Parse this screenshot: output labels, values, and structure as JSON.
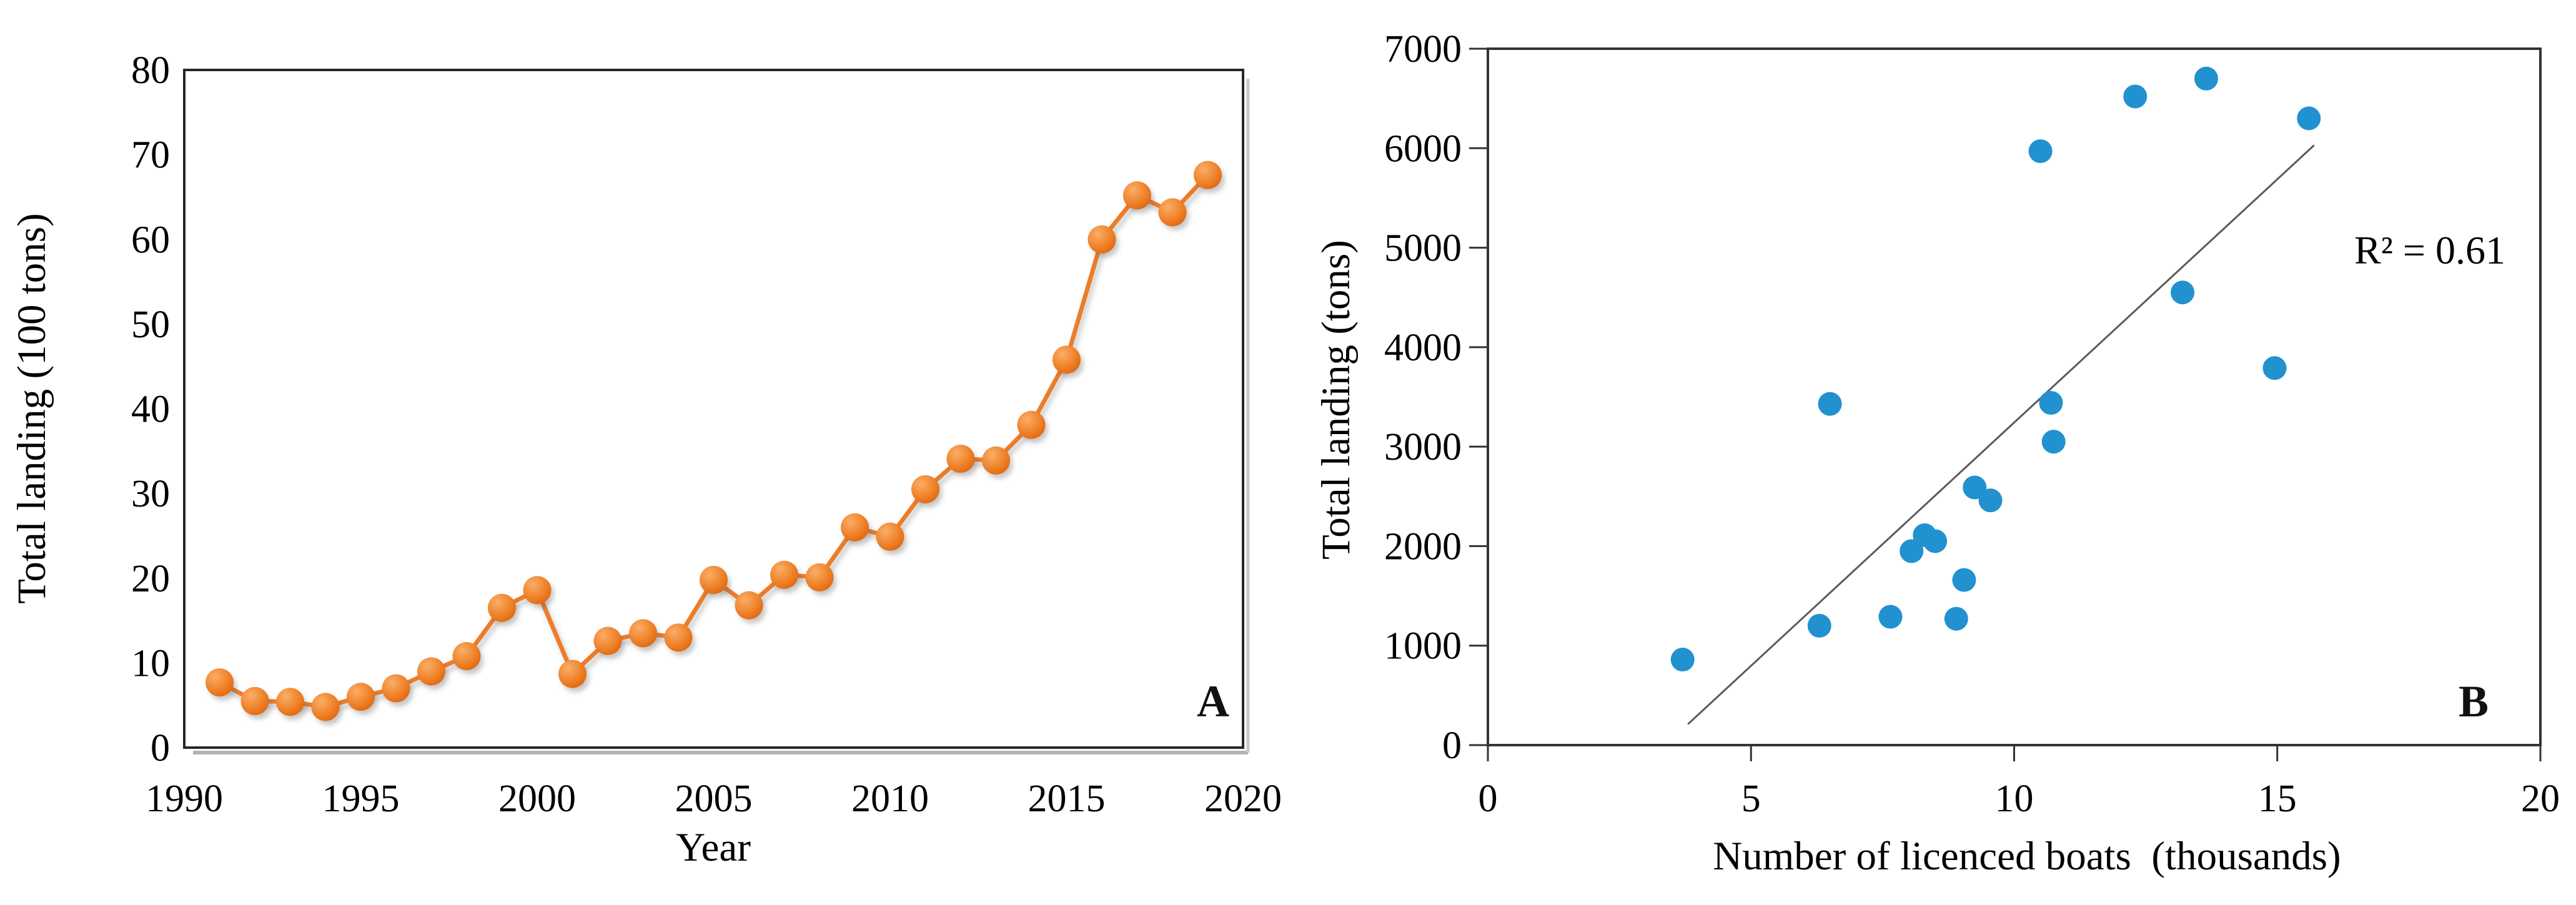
{
  "panels": {
    "a": {
      "letter": "A",
      "xlabel": "Year",
      "ylabel": "Total landing (100 tons)"
    },
    "b": {
      "letter": "B",
      "xlabel": "Number of licenced boats  (thousands)",
      "ylabel": "Total landing (tons)",
      "annotation": "R² = 0.61"
    }
  },
  "chart_data": [
    {
      "id": "A",
      "type": "line",
      "title": "",
      "xlabel": "Year",
      "ylabel": "Total landing (100 tons)",
      "x": [
        1991,
        1992,
        1993,
        1994,
        1995,
        1996,
        1997,
        1998,
        1999,
        2000,
        2001,
        2002,
        2003,
        2004,
        2005,
        2006,
        2007,
        2008,
        2009,
        2010,
        2011,
        2012,
        2013,
        2014,
        2015,
        2016,
        2017,
        2018,
        2019
      ],
      "values": [
        7.7,
        5.5,
        5.4,
        4.8,
        6.0,
        7.0,
        9.0,
        10.8,
        16.5,
        18.6,
        8.7,
        12.6,
        13.5,
        13.0,
        19.8,
        16.8,
        20.4,
        20.1,
        26.0,
        24.9,
        30.5,
        34.1,
        33.9,
        38.1,
        45.8,
        60.0,
        65.2,
        63.2,
        67.6
      ],
      "xlim": [
        1990,
        2020
      ],
      "ylim": [
        0,
        80
      ],
      "xticks": [
        1990,
        1995,
        2000,
        2005,
        2010,
        2015,
        2020
      ],
      "yticks": [
        0,
        10,
        20,
        30,
        40,
        50,
        60,
        70,
        80
      ],
      "grid": false,
      "legend": "none",
      "line_color": "#ED7C29",
      "marker_color": "#ED7C29",
      "frame_color": "#262626"
    },
    {
      "id": "B",
      "type": "scatter",
      "title": "",
      "xlabel": "Number of licenced boats (thousands)",
      "ylabel": "Total landing (tons)",
      "points": [
        [
          3.7,
          860
        ],
        [
          6.3,
          1200
        ],
        [
          6.5,
          3430
        ],
        [
          7.65,
          1290
        ],
        [
          8.05,
          1950
        ],
        [
          8.3,
          2110
        ],
        [
          8.5,
          2050
        ],
        [
          8.9,
          1270
        ],
        [
          9.05,
          1660
        ],
        [
          9.25,
          2590
        ],
        [
          9.55,
          2460
        ],
        [
          10.5,
          5970
        ],
        [
          10.7,
          3440
        ],
        [
          10.75,
          3050
        ],
        [
          12.3,
          6520
        ],
        [
          13.2,
          4550
        ],
        [
          13.65,
          6700
        ],
        [
          14.95,
          3790
        ],
        [
          15.6,
          6300
        ]
      ],
      "xlim": [
        0,
        20
      ],
      "ylim": [
        0,
        7000
      ],
      "xticks": [
        0,
        5,
        10,
        15,
        20
      ],
      "yticks": [
        0,
        1000,
        2000,
        3000,
        4000,
        5000,
        6000,
        7000
      ],
      "grid": false,
      "legend": "none",
      "annotation": "R² = 0.61",
      "trendline": {
        "x1": 3.8,
        "y1": 210,
        "x2": 15.7,
        "y2": 6030,
        "color": "#5A5A5A"
      },
      "marker_color": "#2191D0",
      "frame_color": "#333333"
    }
  ]
}
